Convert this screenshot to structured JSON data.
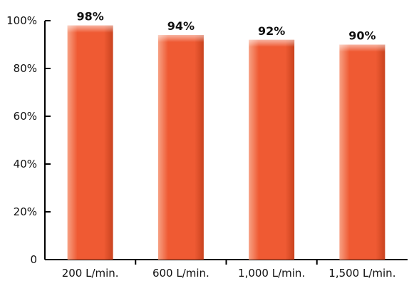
{
  "chart_data": {
    "type": "bar",
    "categories": [
      "200 L/min.",
      "600 L/min.",
      "1,000 L/min.",
      "1,500 L/min."
    ],
    "values": [
      98,
      94,
      92,
      90
    ],
    "value_labels": [
      "98%",
      "94%",
      "92%",
      "90%"
    ],
    "ylim": [
      0,
      100
    ],
    "yticks": [
      0,
      20,
      40,
      60,
      80,
      100
    ],
    "ytick_labels": [
      "0",
      "20%",
      "40%",
      "60%",
      "80%",
      "100%"
    ],
    "title": "",
    "xlabel": "",
    "ylabel": "",
    "grid": false,
    "colors": {
      "bar": "#ef5a33",
      "bar_light": "#f7a184",
      "bar_dark": "#c9431f"
    }
  }
}
